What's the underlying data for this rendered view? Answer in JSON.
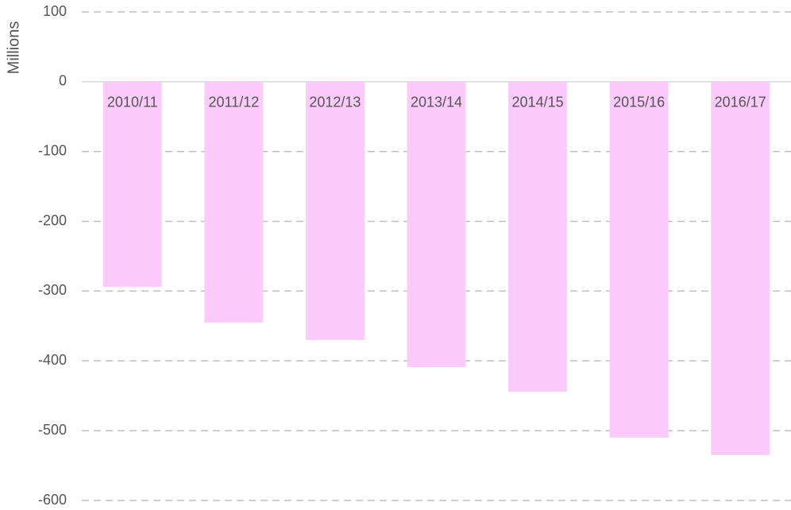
{
  "chart_data": {
    "type": "bar",
    "y_label": "Millions",
    "categories": [
      "2010/11",
      "2011/12",
      "2012/13",
      "2013/14",
      "2014/15",
      "2015/16",
      "2016/17"
    ],
    "values": [
      -294,
      -345,
      -370,
      -409,
      -444,
      -510,
      -535
    ],
    "color": "#fccbfc",
    "ylim": [
      -600,
      100
    ],
    "yticks": [
      -600,
      -500,
      -400,
      -300,
      -200,
      -100,
      0,
      100
    ],
    "grid": true
  }
}
